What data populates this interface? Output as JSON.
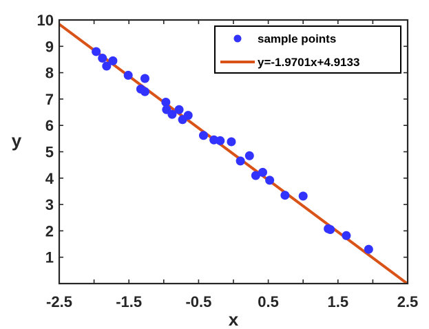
{
  "chart_data": {
    "type": "scatter",
    "title": "",
    "xlabel": "x",
    "ylabel": "y",
    "xlim": [
      -2.5,
      2.5
    ],
    "ylim": [
      0,
      10
    ],
    "xticks": [
      -2.5,
      -2,
      -1.5,
      -1,
      -0.5,
      0,
      0.5,
      1,
      1.5,
      2,
      2.5
    ],
    "xtick_labels": [
      "-2.5",
      "",
      "-1.5",
      "",
      "-0.5",
      "",
      "0.5",
      "",
      "1.5",
      "",
      "2.5"
    ],
    "yticks": [
      1,
      2,
      3,
      4,
      5,
      6,
      7,
      8,
      9,
      10
    ],
    "ytick_labels": [
      "1",
      "2",
      "3",
      "4",
      "5",
      "6",
      "7",
      "8",
      "9",
      "10"
    ],
    "grid": false,
    "legend_position": "top-right",
    "series": [
      {
        "name": "sample points",
        "kind": "scatter",
        "color": "#3333ff",
        "x": [
          -1.97,
          -1.88,
          -1.82,
          -1.73,
          -1.51,
          -1.33,
          -1.27,
          -1.27,
          -0.97,
          -0.96,
          -0.88,
          -0.78,
          -0.73,
          -0.65,
          -0.43,
          -0.28,
          -0.19,
          -0.03,
          0.1,
          0.23,
          0.32,
          0.42,
          0.52,
          0.74,
          1.0,
          1.36,
          1.39,
          1.62,
          1.94
        ],
        "y": [
          8.8,
          8.55,
          8.25,
          8.45,
          7.9,
          7.38,
          7.78,
          7.28,
          6.88,
          6.6,
          6.42,
          6.6,
          6.22,
          6.38,
          5.62,
          5.45,
          5.42,
          5.38,
          4.65,
          4.85,
          4.1,
          4.22,
          3.92,
          3.35,
          3.32,
          2.08,
          2.05,
          1.82,
          1.3
        ]
      },
      {
        "name": "y=-1.9701x+4.9133",
        "kind": "line",
        "color": "#d95319",
        "slope": -1.9701,
        "intercept": 4.9133
      }
    ]
  }
}
